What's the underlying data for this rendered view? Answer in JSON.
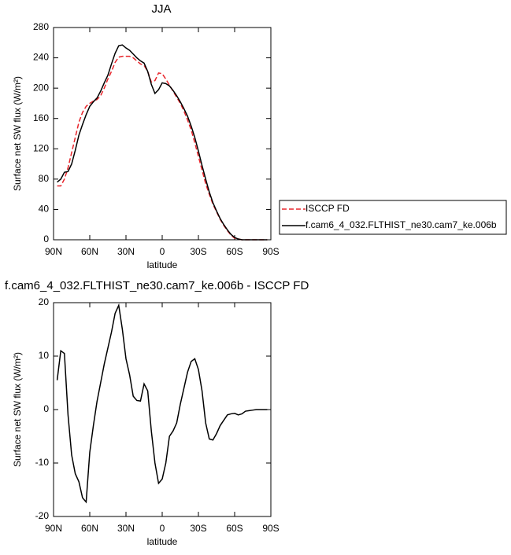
{
  "chart_data": [
    {
      "type": "line",
      "title": "JJA",
      "xlabel": "latitude",
      "ylabel": "Surface net SW flux (W/m²)",
      "x": [
        87,
        84,
        81,
        78,
        75,
        72,
        69,
        66,
        63,
        60,
        57,
        54,
        51,
        48,
        45,
        42,
        39,
        36,
        33,
        30,
        27,
        24,
        21,
        18,
        15,
        12,
        9,
        6,
        3,
        0,
        -3,
        -6,
        -9,
        -12,
        -15,
        -18,
        -21,
        -24,
        -27,
        -30,
        -33,
        -36,
        -39,
        -42,
        -45,
        -48,
        -51,
        -54,
        -57,
        -60,
        -63,
        -66,
        -69,
        -72,
        -75,
        -78,
        -81,
        -84,
        -87
      ],
      "series": [
        {
          "name": "ISCCP FD",
          "color": "#e8252b",
          "dash": true,
          "values": [
            71,
            71,
            80,
            95,
            115,
            135,
            155,
            168,
            176,
            180,
            183,
            185,
            190,
            200,
            212,
            222,
            234,
            241,
            242,
            242,
            242,
            240,
            236,
            232,
            230,
            222,
            208,
            210,
            220,
            219,
            212,
            204,
            196,
            188,
            180,
            170,
            158,
            145,
            128,
            110,
            92,
            74,
            60,
            47,
            37,
            27,
            19,
            12,
            6,
            2,
            1,
            0,
            0,
            0,
            0,
            0,
            0,
            0,
            0
          ]
        },
        {
          "name": "f.cam6_4_032.FLTHIST_ne30.cam7_ke.006b",
          "color": "#000000",
          "dash": false,
          "values": [
            76,
            80,
            89,
            90,
            100,
            118,
            138,
            152,
            165,
            176,
            182,
            187,
            196,
            207,
            217,
            232,
            246,
            256,
            257,
            253,
            250,
            245,
            240,
            236,
            233,
            222,
            205,
            193,
            198,
            207,
            206,
            203,
            197,
            190,
            182,
            173,
            163,
            150,
            135,
            117,
            98,
            80,
            63,
            49,
            38,
            28,
            20,
            13,
            7,
            3,
            1,
            0,
            0,
            0,
            0,
            0,
            0,
            0,
            0
          ]
        }
      ],
      "xlim": [
        90,
        -90
      ],
      "xticks": [
        {
          "value": 90,
          "label": "90N"
        },
        {
          "value": 60,
          "label": "60N"
        },
        {
          "value": 30,
          "label": "30N"
        },
        0,
        {
          "value": -30,
          "label": "30S"
        },
        {
          "value": -60,
          "label": "60S"
        },
        {
          "value": -90,
          "label": "90S"
        }
      ],
      "ylim": [
        0,
        280
      ],
      "yticks": [
        0,
        40,
        80,
        120,
        160,
        200,
        240,
        280
      ],
      "grid": false,
      "legend": "outside-right"
    },
    {
      "type": "line",
      "title": "f.cam6_4_032.FLTHIST_ne30.cam7_ke.006b - ISCCP FD",
      "xlabel": "latitude",
      "ylabel": "Surface net SW flux (W/m²)",
      "x": [
        87,
        84,
        81,
        78,
        75,
        72,
        69,
        66,
        63,
        60,
        57,
        54,
        51,
        48,
        45,
        42,
        39,
        36,
        33,
        30,
        27,
        24,
        21,
        18,
        15,
        12,
        9,
        6,
        3,
        0,
        -3,
        -6,
        -9,
        -12,
        -15,
        -18,
        -21,
        -24,
        -27,
        -30,
        -33,
        -36,
        -39,
        -42,
        -45,
        -48,
        -51,
        -54,
        -57,
        -60,
        -63,
        -66,
        -69,
        -72,
        -75,
        -78,
        -81,
        -84,
        -87
      ],
      "series": [
        {
          "color": "#000000",
          "dash": false,
          "values": [
            5.5,
            11,
            10.5,
            -1,
            -8.5,
            -12,
            -13.5,
            -16.5,
            -17.3,
            -8,
            -3,
            1.5,
            5,
            8.5,
            11.5,
            14.5,
            18,
            19.5,
            15,
            9.5,
            6.5,
            2.5,
            1.7,
            1.6,
            4.8,
            3.5,
            -4,
            -10,
            -13.8,
            -13,
            -10,
            -5,
            -4,
            -2.5,
            1,
            4,
            7,
            9,
            9.5,
            7.5,
            3.5,
            -2.5,
            -5.5,
            -5.7,
            -4.5,
            -3,
            -2,
            -1,
            -0.8,
            -0.7,
            -1,
            -0.8,
            -0.3,
            -0.2,
            -0.1,
            0,
            0,
            0,
            0
          ]
        }
      ],
      "xlim": [
        90,
        -90
      ],
      "xticks": [
        {
          "value": 90,
          "label": "90N"
        },
        {
          "value": 60,
          "label": "60N"
        },
        {
          "value": 30,
          "label": "30N"
        },
        0,
        {
          "value": -30,
          "label": "30S"
        },
        {
          "value": -60,
          "label": "60S"
        },
        {
          "value": -90,
          "label": "90S"
        }
      ],
      "ylim": [
        -20,
        20
      ],
      "yticks": [
        -20,
        -10,
        0,
        10,
        20
      ],
      "grid": false
    }
  ]
}
